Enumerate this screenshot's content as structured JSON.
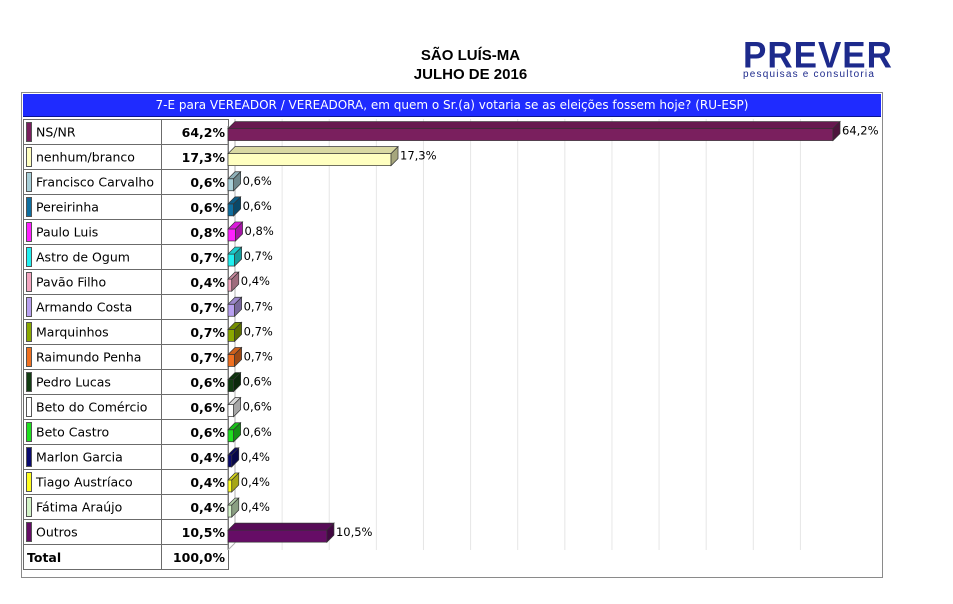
{
  "header": {
    "line1": "SÃO LUÍS-MA",
    "line2": "JULHO DE 2016"
  },
  "logo": {
    "word": "PREVER",
    "sub": "pesquisas e consultoria",
    "color": "#1d2a8c"
  },
  "question": "7-E para VEREADOR / VEREADORA, em quem o Sr.(a) votaria se as eleições fossem hoje? (RU-ESP)",
  "total": {
    "label": "Total",
    "value": "100,0%"
  },
  "chart_data": {
    "type": "bar",
    "orientation": "horizontal",
    "title": "7-E para VEREADOR / VEREADORA, em quem o Sr.(a) votaria se as eleições fossem hoje? (RU-ESP)",
    "xlim": [
      0,
      65
    ],
    "grid": true,
    "unit": "%",
    "categories": [
      "NS/NR",
      "nenhum/branco",
      "Francisco Carvalho",
      "Pereirinha",
      "Paulo Luis",
      "Astro de Ogum",
      "Pavão Filho",
      "Armando Costa",
      "Marquinhos",
      "Raimundo Penha",
      "Pedro Lucas",
      "Beto do Comércio",
      "Beto Castro",
      "Marlon Garcia",
      "Tiago Austríaco",
      "Fátima Araújo",
      "Outros"
    ],
    "values": [
      64.2,
      17.3,
      0.6,
      0.6,
      0.8,
      0.7,
      0.4,
      0.7,
      0.7,
      0.7,
      0.6,
      0.6,
      0.6,
      0.4,
      0.4,
      0.4,
      10.5
    ],
    "labels": [
      "64,2%",
      "17,3%",
      "0,6%",
      "0,6%",
      "0,8%",
      "0,7%",
      "0,4%",
      "0,7%",
      "0,7%",
      "0,7%",
      "0,6%",
      "0,6%",
      "0,6%",
      "0,4%",
      "0,4%",
      "0,4%",
      "10,5%"
    ],
    "colors": [
      "#7a1f5e",
      "#ffffc0",
      "#a8cfd8",
      "#0f6fa0",
      "#ff20ff",
      "#20f0f0",
      "#f4a6c0",
      "#b8a0f0",
      "#8aa800",
      "#f07020",
      "#123d12",
      "#ffffff",
      "#20e020",
      "#0a0a70",
      "#ffff20",
      "#d4f4c8",
      "#660d66"
    ]
  }
}
